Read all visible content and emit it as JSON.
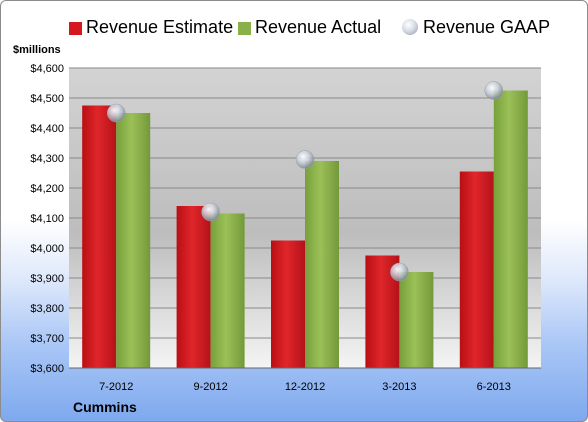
{
  "chart_data": {
    "type": "bar",
    "categories": [
      "7-2012",
      "9-2012",
      "12-2012",
      "3-2013",
      "6-2013"
    ],
    "series": [
      {
        "name": "Revenue Estimate",
        "type": "bar",
        "color": "#d4181c",
        "values": [
          4475,
          4140,
          4025,
          3975,
          4255
        ]
      },
      {
        "name": "Revenue Actual",
        "type": "bar",
        "color": "#8ab04a",
        "values": [
          4450,
          4115,
          4290,
          3920,
          4525
        ]
      },
      {
        "name": "Revenue GAAP",
        "type": "scatter",
        "color": "#c9ced8",
        "values": [
          4450,
          4120,
          4295,
          3920,
          4525
        ]
      }
    ],
    "ylabel": "$millions",
    "ylim": [
      3600,
      4600
    ],
    "yticks": [
      3600,
      3700,
      3800,
      3900,
      4000,
      4100,
      4200,
      4300,
      4400,
      4500,
      4600
    ],
    "ytick_labels": [
      "$3,600",
      "$3,700",
      "$3,800",
      "$3,900",
      "$4,000",
      "$4,100",
      "$4,200",
      "$4,300",
      "$4,400",
      "$4,500",
      "$4,600"
    ],
    "grid": true,
    "legend": "top"
  },
  "company": "Cummins"
}
